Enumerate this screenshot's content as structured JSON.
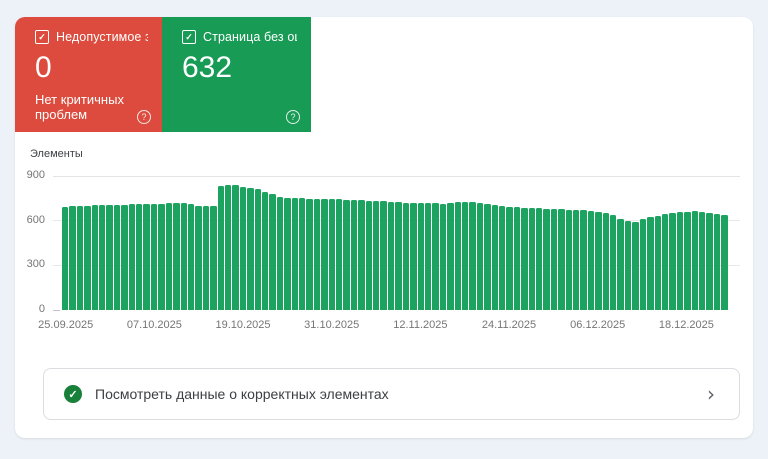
{
  "cards": {
    "errors": {
      "label": "Недопустимое з…",
      "value": "0",
      "subtitle": "Нет критичных проблем",
      "color": "#DC4B3D",
      "checkbox_glyph": "✓",
      "help_glyph": "?"
    },
    "valid": {
      "label": "Страница без ош…",
      "value": "632",
      "color": "#189B55",
      "checkbox_glyph": "✓",
      "help_glyph": "?"
    }
  },
  "chart_data": {
    "type": "bar",
    "ylabel": "Элементы",
    "ylim": [
      0,
      900
    ],
    "yticks": [
      0,
      300,
      600,
      900
    ],
    "grid": true,
    "bar_color": "#1CA35F",
    "xticks": [
      {
        "index": 0,
        "label": "25.09.2025"
      },
      {
        "index": 12,
        "label": "07.10.2025"
      },
      {
        "index": 24,
        "label": "19.10.2025"
      },
      {
        "index": 36,
        "label": "31.10.2025"
      },
      {
        "index": 48,
        "label": "12.11.2025"
      },
      {
        "index": 60,
        "label": "24.11.2025"
      },
      {
        "index": 72,
        "label": "06.12.2025"
      },
      {
        "index": 84,
        "label": "18.12.2025"
      }
    ],
    "values": [
      695,
      698,
      700,
      701,
      702,
      704,
      705,
      706,
      708,
      710,
      711,
      712,
      713,
      714,
      716,
      718,
      720,
      714,
      701,
      697,
      699,
      834,
      841,
      837,
      829,
      821,
      810,
      795,
      776,
      762,
      755,
      752,
      750,
      748,
      747,
      746,
      745,
      744,
      742,
      740,
      738,
      735,
      732,
      729,
      726,
      724,
      722,
      720,
      719,
      718,
      716,
      714,
      718,
      724,
      728,
      725,
      718,
      710,
      704,
      699,
      695,
      691,
      688,
      685,
      683,
      681,
      679,
      677,
      675,
      673,
      671,
      668,
      661,
      650,
      639,
      612,
      598,
      594,
      612,
      627,
      634,
      643,
      650,
      656,
      660,
      662,
      658,
      650,
      644,
      640
    ]
  },
  "footer": {
    "label": "Посмотреть данные о корректных элементах",
    "check_glyph": "✓",
    "chevron_glyph": "›"
  }
}
